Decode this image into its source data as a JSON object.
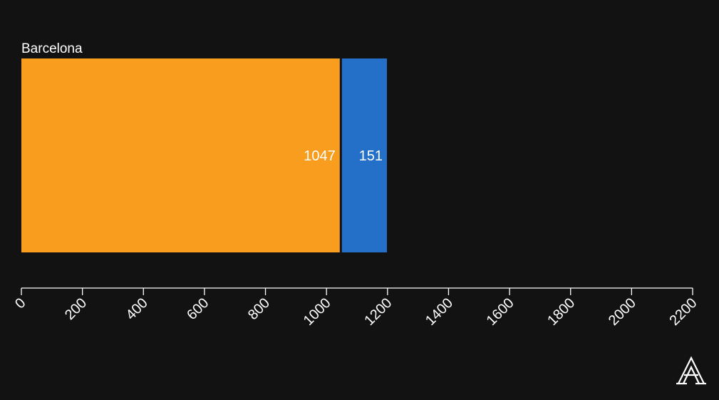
{
  "chart_data": {
    "type": "bar",
    "orientation": "horizontal",
    "stacked": true,
    "categories": [
      "Barcelona"
    ],
    "series": [
      {
        "values": [
          1047
        ],
        "color": "#F99D1E"
      },
      {
        "values": [
          151
        ],
        "color": "#2470C8"
      }
    ],
    "xlim": [
      0,
      2200
    ],
    "xticks": [
      0,
      200,
      400,
      600,
      800,
      1000,
      1200,
      1400,
      1600,
      1800,
      2000,
      2200
    ],
    "xlabel": "",
    "ylabel": "",
    "title": "",
    "grid": false,
    "data_labels": true
  },
  "background": "#121212",
  "logo_icon": "publisher-logo-icon"
}
